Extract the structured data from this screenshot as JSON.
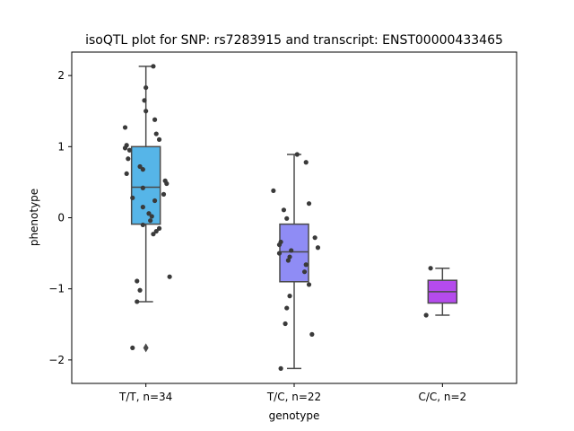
{
  "chart_data": {
    "type": "box",
    "title": "isoQTL plot for SNP: rs7283915 and transcript: ENST00000433465",
    "xlabel": "genotype",
    "ylabel": "phenotype",
    "ylim": [
      -2.33,
      2.33
    ],
    "yticks": [
      -2,
      -1,
      0,
      1,
      2
    ],
    "yticks_labels": [
      "−2",
      "−1",
      "0",
      "1",
      "2"
    ],
    "grid": false,
    "categories": [
      "T/T, n=34",
      "T/C, n=22",
      "C/C, n=2"
    ],
    "boxes": [
      {
        "label": "T/T, n=34",
        "color": "#56b5e8",
        "q1": -0.09,
        "median": 0.43,
        "q3": 1.0,
        "whisker_low": -1.18,
        "whisker_high": 2.13,
        "outliers": [
          -1.83
        ],
        "points": [
          2.13,
          1.83,
          1.65,
          1.5,
          1.38,
          1.27,
          1.18,
          1.1,
          1.02,
          0.98,
          0.95,
          0.83,
          0.72,
          0.68,
          0.62,
          0.52,
          0.48,
          0.42,
          0.33,
          0.28,
          0.24,
          0.15,
          0.06,
          0.02,
          -0.04,
          -0.1,
          -0.15,
          -0.19,
          -0.23,
          -0.83,
          -0.89,
          -1.02,
          -1.18,
          -1.83
        ],
        "jitter": [
          0.05,
          0.0,
          -0.01,
          0.0,
          0.06,
          -0.14,
          0.07,
          0.09,
          -0.13,
          -0.14,
          -0.11,
          -0.12,
          -0.04,
          -0.02,
          -0.13,
          0.13,
          0.14,
          -0.02,
          0.12,
          -0.09,
          0.06,
          -0.02,
          0.02,
          0.04,
          0.03,
          -0.02,
          0.09,
          0.07,
          0.05,
          0.16,
          -0.06,
          -0.04,
          -0.06,
          -0.09
        ]
      },
      {
        "label": "T/C, n=22",
        "color": "#8f8cf5",
        "q1": -0.9,
        "median": -0.48,
        "q3": -0.09,
        "whisker_low": -2.12,
        "whisker_high": 0.89,
        "outliers": [],
        "points": [
          0.89,
          0.78,
          0.38,
          0.2,
          0.11,
          -0.01,
          -0.28,
          -0.34,
          -0.38,
          -0.42,
          -0.46,
          -0.5,
          -0.55,
          -0.6,
          -0.66,
          -0.76,
          -0.94,
          -1.1,
          -1.27,
          -1.49,
          -1.64,
          -2.12
        ],
        "jitter": [
          0.02,
          0.08,
          -0.14,
          0.1,
          -0.07,
          -0.05,
          0.14,
          -0.09,
          -0.1,
          0.16,
          -0.02,
          -0.1,
          -0.03,
          -0.04,
          0.08,
          0.07,
          0.1,
          -0.03,
          -0.05,
          -0.06,
          0.12,
          -0.09
        ]
      },
      {
        "label": "C/C, n=2",
        "color": "#b54bed",
        "q1": -1.2,
        "median": -1.04,
        "q3": -0.88,
        "whisker_low": -1.37,
        "whisker_high": -0.71,
        "outliers": [],
        "points": [
          -0.71,
          -1.37
        ],
        "jitter": [
          -0.08,
          -0.11
        ]
      }
    ]
  }
}
